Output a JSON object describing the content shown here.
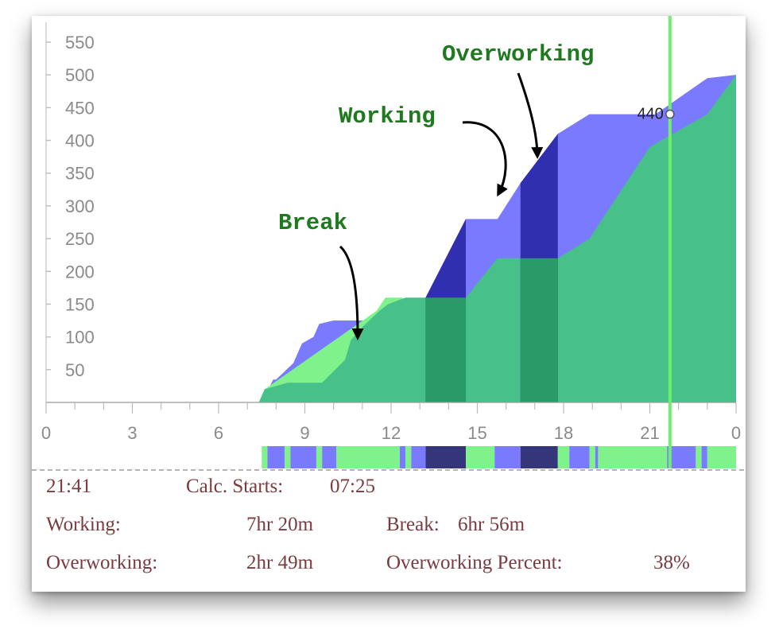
{
  "chart_data": {
    "type": "area",
    "x_ticks": [
      "0",
      "3",
      "6",
      "9",
      "12",
      "15",
      "18",
      "21",
      "0"
    ],
    "y_ticks": [
      "50",
      "100",
      "150",
      "200",
      "250",
      "300",
      "350",
      "400",
      "450",
      "500",
      "550"
    ],
    "xlim": [
      0,
      24
    ],
    "ylim": [
      0,
      590
    ],
    "grid": false,
    "series": [
      {
        "color": "#7a7aff",
        "x": [
          7.5,
          7.9,
          8.0,
          8.6,
          8.9,
          9.3,
          9.5,
          10.0,
          10.2,
          10.5,
          11.6,
          12.4,
          13.2,
          14.6,
          15.7,
          16.5,
          17.8,
          18.9,
          21.2,
          23.0,
          24.0
        ],
        "values": [
          0,
          35,
          35,
          60,
          90,
          100,
          120,
          125,
          125,
          125,
          125,
          140,
          160,
          280,
          280,
          335,
          410,
          440,
          440,
          495,
          500
        ]
      },
      {
        "color": "#47c08a",
        "x": [
          7.4,
          7.6,
          8.4,
          9.6,
          10.4,
          10.6,
          11.0,
          11.6,
          11.9,
          12.5,
          13.2,
          14.6,
          15.7,
          16.5,
          17.8,
          18.9,
          21.0,
          23.0,
          24.0
        ],
        "values": [
          0,
          20,
          30,
          30,
          65,
          95,
          115,
          140,
          150,
          160,
          160,
          160,
          220,
          220,
          220,
          250,
          390,
          440,
          500
        ]
      }
    ],
    "light_accent": {
      "color": "#7ff28c",
      "x": [
        7.4,
        7.6,
        11.5,
        11.8,
        12.4
      ],
      "values": [
        0,
        20,
        140,
        160,
        160
      ]
    },
    "highlight_bands": [
      {
        "x0": 13.2,
        "x1": 14.6,
        "top_color": "#2f2fb0",
        "bottom_color": "#2a9a68"
      },
      {
        "x0": 16.5,
        "x1": 17.8,
        "top_color": "#2f2fb0",
        "bottom_color": "#2a9a68"
      }
    ],
    "current_marker": {
      "x": 21.7,
      "value": 440,
      "label": "440"
    },
    "timeline_segments": [
      {
        "x0": 7.5,
        "x1": 7.7,
        "state": "green"
      },
      {
        "x0": 7.7,
        "x1": 8.3,
        "state": "blue"
      },
      {
        "x0": 8.3,
        "x1": 8.5,
        "state": "green"
      },
      {
        "x0": 8.5,
        "x1": 9.4,
        "state": "blue"
      },
      {
        "x0": 9.4,
        "x1": 9.6,
        "state": "green"
      },
      {
        "x0": 9.6,
        "x1": 10.1,
        "state": "blue"
      },
      {
        "x0": 10.1,
        "x1": 12.3,
        "state": "green"
      },
      {
        "x0": 12.3,
        "x1": 12.5,
        "state": "blue"
      },
      {
        "x0": 12.5,
        "x1": 12.7,
        "state": "green"
      },
      {
        "x0": 12.7,
        "x1": 13.2,
        "state": "blue"
      },
      {
        "x0": 13.2,
        "x1": 14.6,
        "state": "dark"
      },
      {
        "x0": 14.6,
        "x1": 15.6,
        "state": "green"
      },
      {
        "x0": 15.6,
        "x1": 16.5,
        "state": "blue"
      },
      {
        "x0": 16.5,
        "x1": 17.8,
        "state": "dark"
      },
      {
        "x0": 17.8,
        "x1": 18.2,
        "state": "green"
      },
      {
        "x0": 18.2,
        "x1": 18.9,
        "state": "blue"
      },
      {
        "x0": 18.9,
        "x1": 19.1,
        "state": "green"
      },
      {
        "x0": 19.1,
        "x1": 19.2,
        "state": "blue"
      },
      {
        "x0": 19.2,
        "x1": 21.6,
        "state": "green"
      },
      {
        "x0": 21.6,
        "x1": 21.8,
        "state": "blue"
      },
      {
        "x0": 21.8,
        "x1": 22.6,
        "state": "blue"
      },
      {
        "x0": 22.6,
        "x1": 22.8,
        "state": "green"
      },
      {
        "x0": 22.8,
        "x1": 23.0,
        "state": "blue"
      },
      {
        "x0": 23.0,
        "x1": 24.0,
        "state": "green"
      }
    ],
    "state_colors": {
      "green": "#7ff28c",
      "blue": "#7a7aff",
      "dark": "#35357a"
    },
    "annotations": [
      {
        "text": "Break",
        "x": 10.6,
        "value": 130
      },
      {
        "text": "Working",
        "x": 15.7,
        "value": 320
      },
      {
        "text": "Overworking",
        "x": 17.0,
        "value": 380
      }
    ],
    "annotation_color": "#1f7a1f"
  },
  "stats": {
    "current_time": "21:41",
    "calc_starts_label": "Calc. Starts:",
    "calc_starts_value": "07:25",
    "working_label": "Working:",
    "working_value": "7hr 20m",
    "break_label": "Break:",
    "break_value": "6hr 56m",
    "overworking_label": "Overworking:",
    "overworking_value": "2hr 49m",
    "overworking_percent_label": "Overworking Percent:",
    "overworking_percent_value": "38%"
  }
}
